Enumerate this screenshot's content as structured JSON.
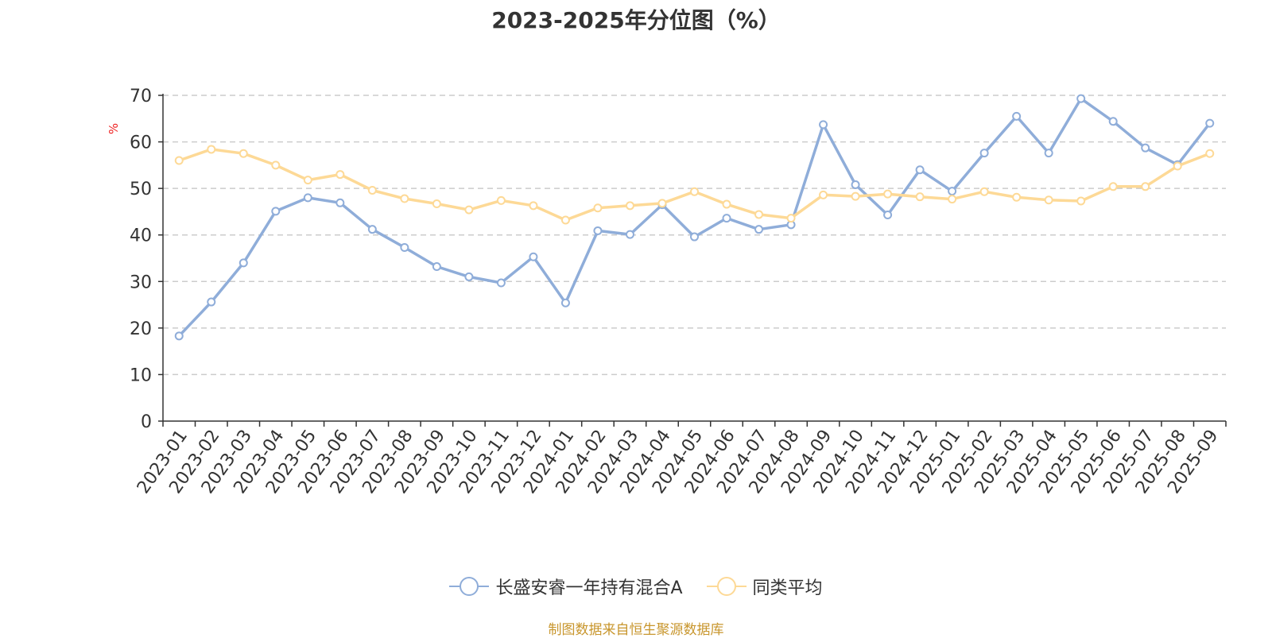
{
  "chart_data": {
    "type": "line",
    "title": "2023-2025年分位图（%）",
    "ylabel": "%",
    "xlabel": "",
    "ylim": [
      0,
      70
    ],
    "yticks": [
      0,
      10,
      20,
      30,
      40,
      50,
      60,
      70
    ],
    "grid": true,
    "legend_position": "bottom",
    "categories": [
      "2023-01",
      "2023-02",
      "2023-03",
      "2023-04",
      "2023-05",
      "2023-06",
      "2023-07",
      "2023-08",
      "2023-09",
      "2023-10",
      "2023-11",
      "2023-12",
      "2024-01",
      "2024-02",
      "2024-03",
      "2024-04",
      "2024-05",
      "2024-06",
      "2024-07",
      "2024-08",
      "2024-09",
      "2024-10",
      "2024-11",
      "2024-12",
      "2025-01",
      "2025-02",
      "2025-03",
      "2025-04",
      "2025-05",
      "2025-06",
      "2025-07",
      "2025-08",
      "2025-09"
    ],
    "series": [
      {
        "name": "长盛安睿一年持有混合A",
        "color": "#8fadd9",
        "values": [
          18.3,
          25.6,
          34.0,
          45.1,
          48.0,
          46.9,
          41.2,
          37.3,
          33.2,
          31.0,
          29.7,
          35.3,
          25.4,
          40.9,
          40.1,
          46.5,
          39.6,
          43.6,
          41.2,
          42.2,
          63.7,
          50.8,
          44.3,
          54.0,
          49.4,
          57.6,
          65.5,
          57.6,
          69.3,
          64.4,
          58.7,
          55.1,
          64.0
        ]
      },
      {
        "name": "同类平均",
        "color": "#fdd996",
        "values": [
          56.0,
          58.4,
          57.5,
          55.0,
          51.8,
          53.0,
          49.6,
          47.8,
          46.7,
          45.4,
          47.4,
          46.3,
          43.2,
          45.8,
          46.3,
          46.8,
          49.3,
          46.6,
          44.4,
          43.6,
          48.6,
          48.3,
          48.8,
          48.2,
          47.7,
          49.3,
          48.1,
          47.5,
          47.3,
          50.4,
          50.4,
          54.8,
          57.5
        ]
      }
    ]
  },
  "legend": {
    "items": [
      "长盛安睿一年持有混合A",
      "同类平均"
    ]
  },
  "footer": {
    "source": "制图数据来自恒生聚源数据库"
  }
}
